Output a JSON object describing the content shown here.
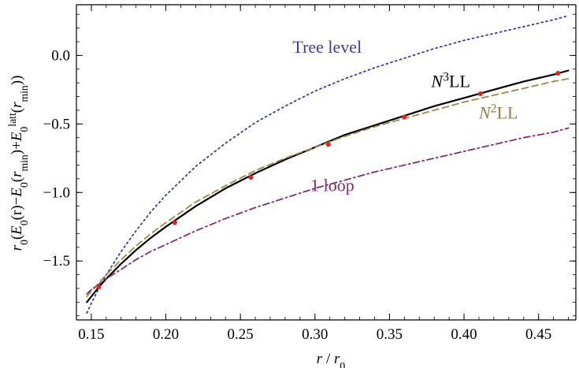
{
  "chart_data": {
    "type": "line",
    "title": "",
    "xlabel": {
      "base": "r",
      "sep": " / ",
      "sym": "r",
      "sub": "0"
    },
    "ylabel": {
      "parts": [
        {
          "t": "r",
          "italic": true
        },
        {
          "t": "0",
          "sub": true
        },
        {
          "t": "("
        },
        {
          "t": "E",
          "italic": true
        },
        {
          "t": "0",
          "sub": true
        },
        {
          "t": "(r)−"
        },
        {
          "t": "E",
          "italic": true
        },
        {
          "t": "0",
          "sub": true
        },
        {
          "t": "("
        },
        {
          "t": "r",
          "italic": true
        },
        {
          "t": "min",
          "sub": true
        },
        {
          "t": ")+"
        },
        {
          "t": "E",
          "italic": true
        },
        {
          "t": "0",
          "sub": true
        },
        {
          "t": "latt",
          "sup": true
        },
        {
          "t": "("
        },
        {
          "t": "r",
          "italic": true
        },
        {
          "t": "min",
          "sub": true
        },
        {
          "t": "))"
        }
      ]
    },
    "xlim": [
      0.14,
      0.475
    ],
    "ylim": [
      -1.93,
      0.37
    ],
    "x_ticks": [
      0.15,
      0.2,
      0.25,
      0.3,
      0.35,
      0.4,
      0.45
    ],
    "x_tick_labels": [
      "0.15",
      "0.20",
      "0.25",
      "0.30",
      "0.35",
      "0.40",
      "0.45"
    ],
    "y_ticks": [
      0.0,
      -0.5,
      -1.0,
      -1.5
    ],
    "y_tick_labels": [
      "0.0",
      "−0.5",
      "−1.0",
      "−1.5"
    ],
    "grid": false,
    "legend": "inline labels",
    "series": [
      {
        "name": "Tree level",
        "label_parts": [
          {
            "t": "Tree level"
          }
        ],
        "color": "#3a3aa8",
        "style": "dotted",
        "x": [
          0.147,
          0.15,
          0.155,
          0.16,
          0.17,
          0.18,
          0.19,
          0.2,
          0.22,
          0.24,
          0.26,
          0.28,
          0.3,
          0.32,
          0.34,
          0.36,
          0.38,
          0.4,
          0.42,
          0.44,
          0.46,
          0.47
        ],
        "y": [
          -1.88,
          -1.81,
          -1.7,
          -1.6,
          -1.43,
          -1.28,
          -1.14,
          -1.02,
          -0.81,
          -0.64,
          -0.49,
          -0.37,
          -0.26,
          -0.17,
          -0.09,
          -0.02,
          0.05,
          0.11,
          0.16,
          0.21,
          0.26,
          0.29
        ]
      },
      {
        "name": "N3LL",
        "label_parts": [
          {
            "t": "N",
            "italic": true
          },
          {
            "t": "3",
            "sup": true
          },
          {
            "t": "LL"
          }
        ],
        "color": "#000000",
        "style": "solid",
        "x": [
          0.147,
          0.15,
          0.155,
          0.16,
          0.17,
          0.18,
          0.19,
          0.2,
          0.22,
          0.24,
          0.26,
          0.28,
          0.3,
          0.32,
          0.34,
          0.36,
          0.38,
          0.4,
          0.42,
          0.44,
          0.46,
          0.47
        ],
        "y": [
          -1.8,
          -1.76,
          -1.69,
          -1.63,
          -1.52,
          -1.42,
          -1.33,
          -1.25,
          -1.1,
          -0.97,
          -0.86,
          -0.76,
          -0.67,
          -0.58,
          -0.51,
          -0.44,
          -0.37,
          -0.31,
          -0.25,
          -0.19,
          -0.14,
          -0.11
        ]
      },
      {
        "name": "N2LL",
        "label_parts": [
          {
            "t": "N",
            "italic": true
          },
          {
            "t": "2",
            "sup": true
          },
          {
            "t": "LL"
          }
        ],
        "color": "#9a8a4a",
        "style": "dashed",
        "x": [
          0.147,
          0.15,
          0.155,
          0.16,
          0.17,
          0.18,
          0.19,
          0.2,
          0.22,
          0.24,
          0.26,
          0.28,
          0.3,
          0.32,
          0.34,
          0.36,
          0.38,
          0.4,
          0.42,
          0.44,
          0.46,
          0.47
        ],
        "y": [
          -1.76,
          -1.72,
          -1.66,
          -1.6,
          -1.49,
          -1.39,
          -1.3,
          -1.22,
          -1.07,
          -0.95,
          -0.84,
          -0.75,
          -0.67,
          -0.59,
          -0.52,
          -0.46,
          -0.4,
          -0.34,
          -0.29,
          -0.24,
          -0.19,
          -0.17
        ]
      },
      {
        "name": "1 loop",
        "label_parts": [
          {
            "t": "1 loop"
          }
        ],
        "color": "#8b2a6e",
        "style": "dashdot",
        "x": [
          0.147,
          0.15,
          0.155,
          0.16,
          0.17,
          0.18,
          0.19,
          0.2,
          0.22,
          0.24,
          0.26,
          0.28,
          0.3,
          0.32,
          0.34,
          0.36,
          0.38,
          0.4,
          0.42,
          0.44,
          0.46,
          0.47
        ],
        "y": [
          -1.74,
          -1.71,
          -1.67,
          -1.63,
          -1.56,
          -1.49,
          -1.43,
          -1.38,
          -1.28,
          -1.19,
          -1.11,
          -1.04,
          -0.97,
          -0.91,
          -0.85,
          -0.8,
          -0.75,
          -0.7,
          -0.65,
          -0.6,
          -0.56,
          -0.53
        ]
      }
    ],
    "lattice_points": {
      "color": "#e0231d",
      "x": [
        0.155,
        0.206,
        0.257,
        0.309,
        0.36,
        0.411,
        0.463
      ],
      "y": [
        -1.69,
        -1.22,
        -0.89,
        -0.65,
        -0.45,
        -0.28,
        -0.13
      ]
    },
    "label_positions": {
      "Tree level": {
        "x": 0.285,
        "y": 0.02
      },
      "N3LL": {
        "x": 0.378,
        "y": -0.23
      },
      "N2LL": {
        "x": 0.41,
        "y": -0.46
      },
      "1 loop": {
        "x": 0.297,
        "y": -0.99
      }
    }
  }
}
